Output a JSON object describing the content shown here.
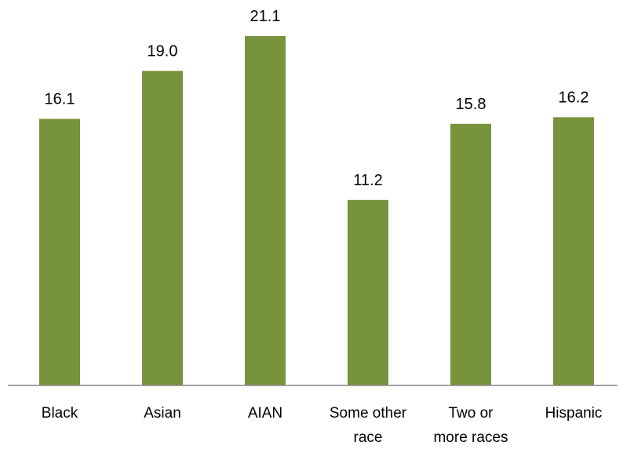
{
  "chart_data": {
    "type": "bar",
    "title": "",
    "xlabel": "",
    "ylabel": "",
    "categories": [
      [
        "Black"
      ],
      [
        "Asian"
      ],
      [
        "AIAN"
      ],
      [
        "Some other",
        "race"
      ],
      [
        "Two or",
        "more races"
      ],
      [
        "Hispanic"
      ]
    ],
    "values": [
      16.1,
      19.0,
      21.1,
      11.2,
      15.8,
      16.2
    ],
    "value_labels": [
      "16.1",
      "19.0",
      "21.1",
      "11.2",
      "15.8",
      "16.2"
    ],
    "ylim": [
      0,
      21.1
    ],
    "grid": false,
    "legend": "none",
    "colors": {
      "bar": "#77933c",
      "axis": "#868686",
      "text": "#000000"
    }
  }
}
